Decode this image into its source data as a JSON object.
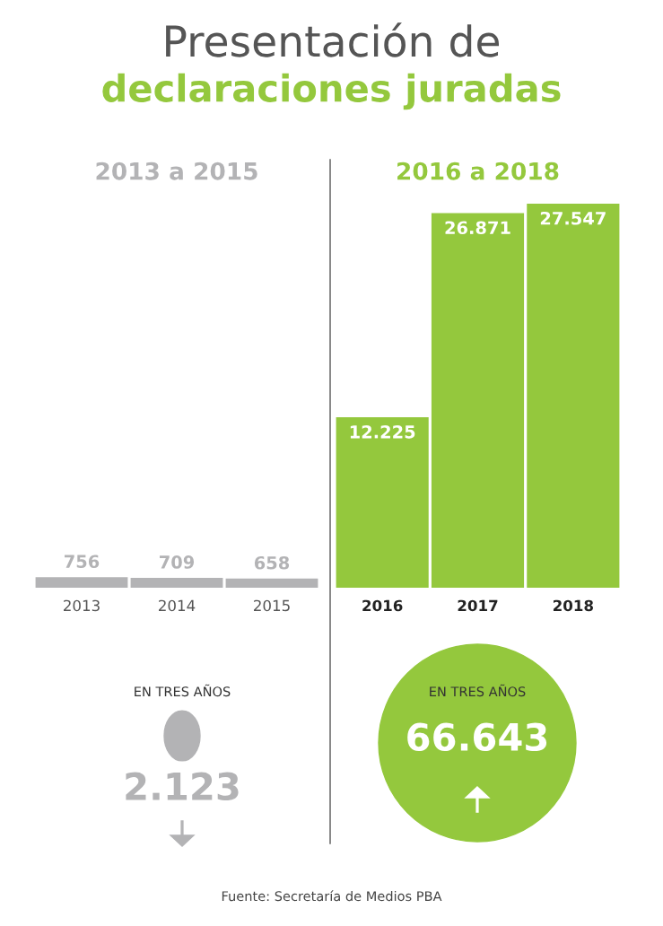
{
  "chart_data": [
    {
      "type": "other",
      "title": "Presentación de",
      "subtitle": "declaraciones juradas",
      "annotations": [
        "Fuente: Secretaría de Medios PBA"
      ]
    },
    {
      "type": "bar",
      "title": "2013 a 2015",
      "categories": [
        "2013",
        "2014",
        "2015"
      ],
      "values": [
        756,
        709,
        658
      ],
      "value_labels": [
        "756",
        "709",
        "658"
      ],
      "color": "#b3b3b5",
      "annotations": [
        "EN TRES AÑOS",
        "2.123"
      ]
    },
    {
      "type": "bar",
      "title": "2016 a 2018",
      "categories": [
        "2016",
        "2017",
        "2018"
      ],
      "values": [
        12225,
        26871,
        27547
      ],
      "value_labels": [
        "12.225",
        "26.871",
        "27.547"
      ],
      "color": "#94c83d",
      "annotations": [
        "EN TRES AÑOS",
        "66.643"
      ]
    }
  ]
}
